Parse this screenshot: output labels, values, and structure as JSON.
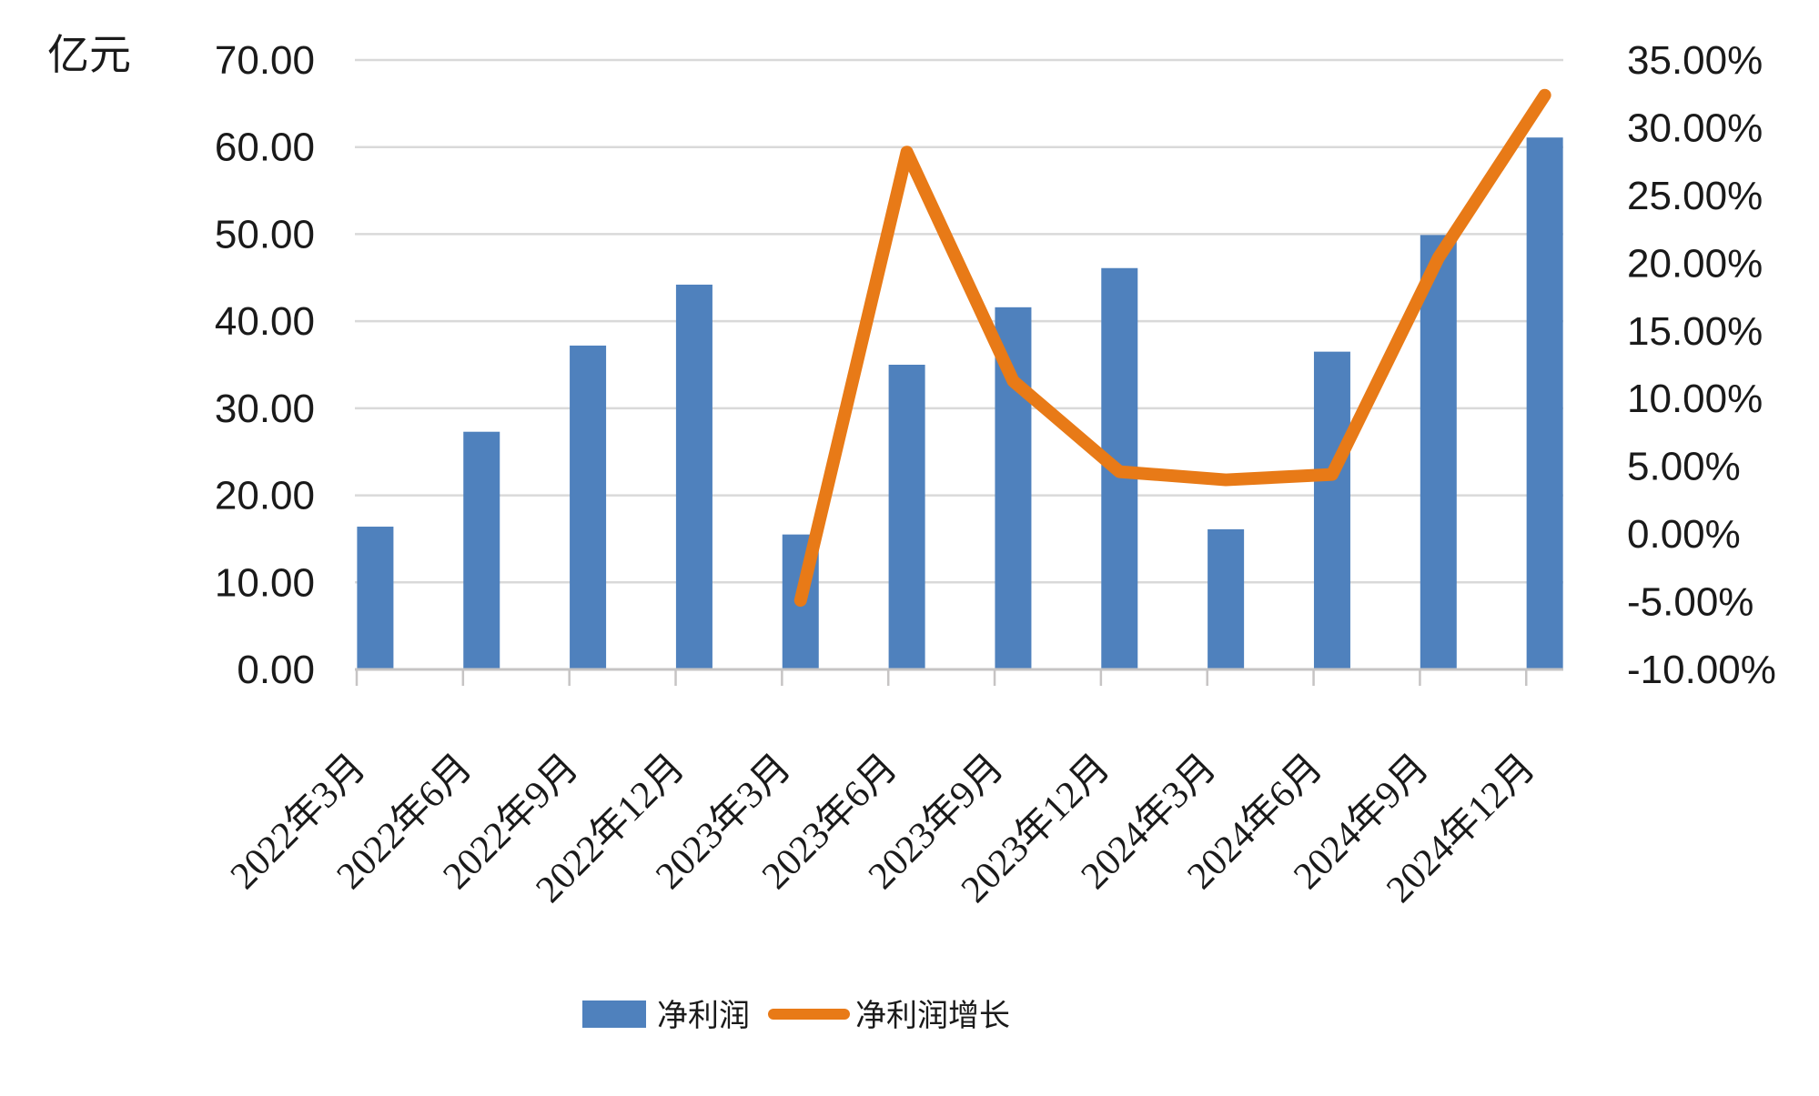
{
  "chart_data": {
    "type": "combo",
    "subtype": [
      "bar",
      "line"
    ],
    "title": "",
    "unit_label": "亿元",
    "categories": [
      "2022年3月",
      "2022年6月",
      "2022年9月",
      "2022年12月",
      "2023年3月",
      "2023年6月",
      "2023年9月",
      "2023年12月",
      "2024年3月",
      "2024年6月",
      "2024年9月",
      "2024年12月"
    ],
    "series": [
      {
        "name": "净利润",
        "type": "bar",
        "axis": "left",
        "color": "#4F81BD",
        "values": [
          16.4,
          27.3,
          37.2,
          44.2,
          15.5,
          35.0,
          41.6,
          46.1,
          16.1,
          36.5,
          49.9,
          61.1
        ]
      },
      {
        "name": "净利润增长",
        "type": "line",
        "axis": "right",
        "color": "#E87A17",
        "values": [
          null,
          null,
          null,
          null,
          -4.9,
          28.2,
          11.3,
          4.6,
          4.0,
          4.4,
          20.4,
          32.4
        ]
      }
    ],
    "left_axis": {
      "min": 0,
      "max": 70,
      "step": 10,
      "tick_labels": [
        "70.00",
        "60.00",
        "50.00",
        "40.00",
        "30.00",
        "20.00",
        "10.00",
        "0.00"
      ]
    },
    "right_axis": {
      "min": -10,
      "max": 35,
      "step": 5,
      "tick_labels": [
        "35.00%",
        "30.00%",
        "25.00%",
        "20.00%",
        "15.00%",
        "10.00%",
        "5.00%",
        "0.00%",
        "-5.00%",
        "-10.00%"
      ]
    },
    "grid": true,
    "legend_position": "bottom",
    "colors": {
      "gridline": "#D9D9D9",
      "axis_line": "#C6C4C4",
      "text": "#1a1a1a"
    }
  }
}
